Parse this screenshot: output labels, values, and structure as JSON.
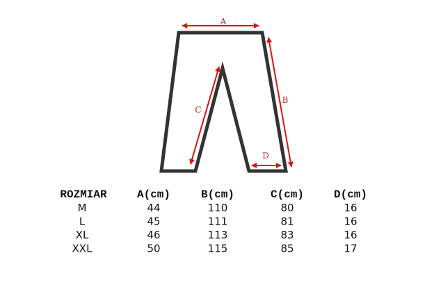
{
  "diagram": {
    "labels": {
      "a": "A",
      "b": "B",
      "c": "C",
      "d": "D"
    },
    "outline_color": "#333333",
    "arrow_color": "#e01010"
  },
  "table": {
    "headers": [
      "ROZMIAR",
      "A(cm)",
      "B(cm)",
      "C(cm)",
      "D(cm)"
    ],
    "rows": [
      [
        "M",
        "44",
        "110",
        "80",
        "16"
      ],
      [
        "L",
        "45",
        "111",
        "81",
        "16"
      ],
      [
        "XL",
        "46",
        "113",
        "83",
        "16"
      ],
      [
        "XXL",
        "50",
        "115",
        "85",
        "17"
      ]
    ]
  }
}
